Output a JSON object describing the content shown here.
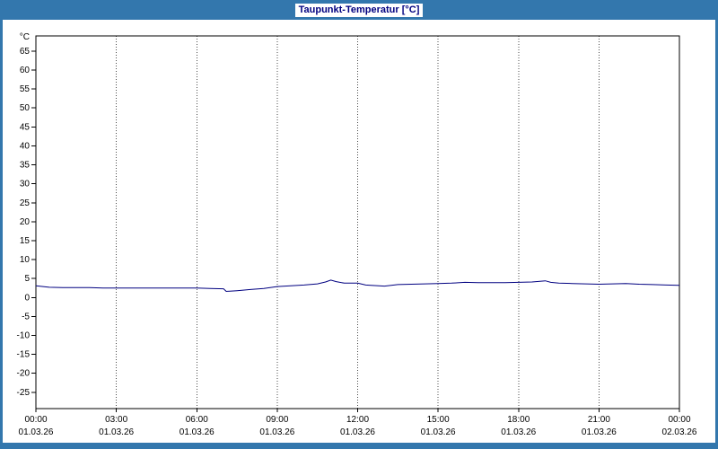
{
  "window": {
    "title": "Taupunkt-Temperatur [°C]",
    "frame_color": "#3377ad",
    "title_text_color": "#000080",
    "title_bg_color": "#ffffff"
  },
  "chart_data": {
    "type": "line",
    "title": "Taupunkt-Temperatur [°C]",
    "xlabel": "",
    "ylabel": "°C",
    "ylim": [
      -29.3,
      69.0
    ],
    "y_ticks": [
      65,
      60,
      55,
      50,
      45,
      40,
      35,
      30,
      25,
      20,
      15,
      10,
      5,
      0,
      -5,
      -10,
      -15,
      -20,
      -25
    ],
    "x_ticks": [
      {
        "hour": 0,
        "time": "00:00",
        "date": "01.03.26"
      },
      {
        "hour": 3,
        "time": "03:00",
        "date": "01.03.26"
      },
      {
        "hour": 6,
        "time": "06:00",
        "date": "01.03.26"
      },
      {
        "hour": 9,
        "time": "09:00",
        "date": "01.03.26"
      },
      {
        "hour": 12,
        "time": "12:00",
        "date": "01.03.26"
      },
      {
        "hour": 15,
        "time": "15:00",
        "date": "01.03.26"
      },
      {
        "hour": 18,
        "time": "18:00",
        "date": "01.03.26"
      },
      {
        "hour": 21,
        "time": "21:00",
        "date": "01.03.26"
      },
      {
        "hour": 24,
        "time": "00:00",
        "date": "02.03.26"
      }
    ],
    "grid": "vertical-dashed",
    "legend": "none",
    "line_color": "#000080",
    "series": [
      {
        "name": "Taupunkt",
        "points": [
          [
            0,
            3.1
          ],
          [
            0.5,
            2.7
          ],
          [
            1,
            2.6
          ],
          [
            1.5,
            2.6
          ],
          [
            2,
            2.6
          ],
          [
            2.5,
            2.5
          ],
          [
            3,
            2.5
          ],
          [
            3.5,
            2.5
          ],
          [
            4,
            2.5
          ],
          [
            4.5,
            2.5
          ],
          [
            5,
            2.5
          ],
          [
            5.5,
            2.5
          ],
          [
            6,
            2.5
          ],
          [
            6.5,
            2.4
          ],
          [
            7,
            2.3
          ],
          [
            7.1,
            1.6
          ],
          [
            7.5,
            1.8
          ],
          [
            8,
            2.1
          ],
          [
            8.5,
            2.4
          ],
          [
            9,
            2.9
          ],
          [
            9.5,
            3.1
          ],
          [
            10,
            3.3
          ],
          [
            10.5,
            3.6
          ],
          [
            10.8,
            4.1
          ],
          [
            11,
            4.6
          ],
          [
            11.2,
            4.2
          ],
          [
            11.5,
            3.8
          ],
          [
            12,
            3.8
          ],
          [
            12.3,
            3.3
          ],
          [
            12.5,
            3.2
          ],
          [
            13,
            3.0
          ],
          [
            13.5,
            3.4
          ],
          [
            14,
            3.5
          ],
          [
            14.5,
            3.6
          ],
          [
            15,
            3.7
          ],
          [
            15.5,
            3.8
          ],
          [
            16,
            4.0
          ],
          [
            16.5,
            3.9
          ],
          [
            17,
            3.9
          ],
          [
            17.5,
            3.9
          ],
          [
            18,
            4.0
          ],
          [
            18.5,
            4.1
          ],
          [
            19,
            4.4
          ],
          [
            19.2,
            4.0
          ],
          [
            19.5,
            3.8
          ],
          [
            20,
            3.7
          ],
          [
            20.5,
            3.6
          ],
          [
            21,
            3.5
          ],
          [
            21.5,
            3.6
          ],
          [
            22,
            3.7
          ],
          [
            22.5,
            3.5
          ],
          [
            23,
            3.4
          ],
          [
            23.5,
            3.3
          ],
          [
            24,
            3.2
          ]
        ]
      }
    ]
  }
}
